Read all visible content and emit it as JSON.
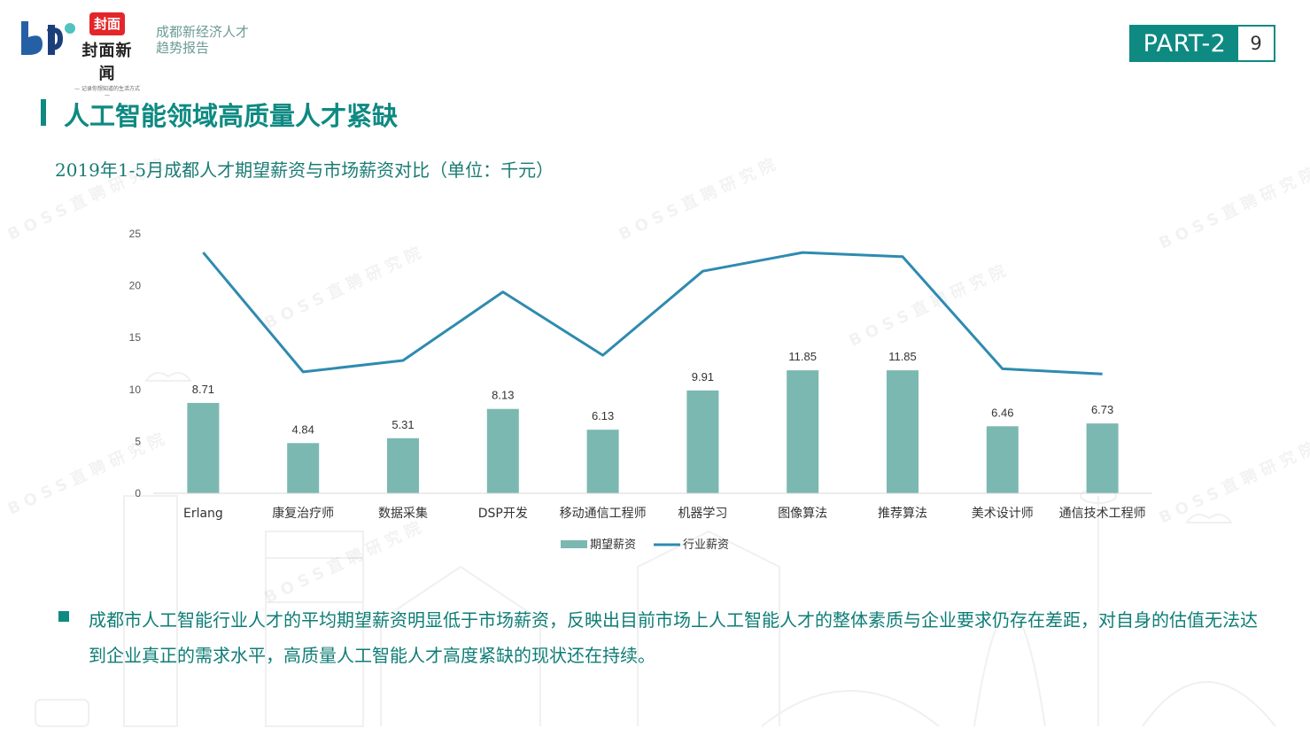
{
  "header": {
    "brand_main": "封面新闻",
    "brand_badge": "封面",
    "brand_tagline": "— 记录你想知道的生活方式 —",
    "report_title_line1": "成都新经济人才",
    "report_title_line2": "趋势报告",
    "part_label": "PART-2",
    "page_number": "9"
  },
  "section": {
    "title": "人工智能领域高质量人才紧缺",
    "chart_title": "2019年1-5月成都人才期望薪资与市场薪资对比（单位：千元）"
  },
  "watermark": "BOSS直聘研究院",
  "colors": {
    "accent": "#0e8a82",
    "bar": "#7bb8b1",
    "line": "#2e8bb0",
    "brand_red": "#e3262a"
  },
  "chart_data": {
    "type": "bar",
    "categories": [
      "Erlang",
      "康复治疗师",
      "数据采集",
      "DSP开发",
      "移动通信工程师",
      "机器学习",
      "图像算法",
      "推荐算法",
      "美术设计师",
      "通信技术工程师"
    ],
    "series": [
      {
        "name": "期望薪资",
        "type": "bar",
        "values": [
          8.71,
          4.84,
          5.31,
          8.13,
          6.13,
          9.91,
          11.85,
          11.85,
          6.46,
          6.73
        ],
        "labels": [
          "8.71",
          "4.84",
          "5.31",
          "8.13",
          "6.13",
          "9.91",
          "11.85",
          "11.85",
          "6.46",
          "6.73"
        ]
      },
      {
        "name": "行业薪资",
        "type": "line",
        "values": [
          23.2,
          11.7,
          12.8,
          19.4,
          13.3,
          21.4,
          23.2,
          22.8,
          12.0,
          11.5
        ]
      }
    ],
    "yticks": [
      "0",
      "5",
      "10",
      "15",
      "20",
      "25"
    ],
    "ylim": [
      0,
      25
    ],
    "legend_position": "bottom",
    "grid": false
  },
  "note": {
    "text": "成都市人工智能行业人才的平均期望薪资明显低于市场薪资，反映出目前市场上人工智能人才的整体素质与企业要求仍存在差距，对自身的估值无法达到企业真正的需求水平，高质量人工智能人才高度紧缺的现状还在持续。"
  }
}
